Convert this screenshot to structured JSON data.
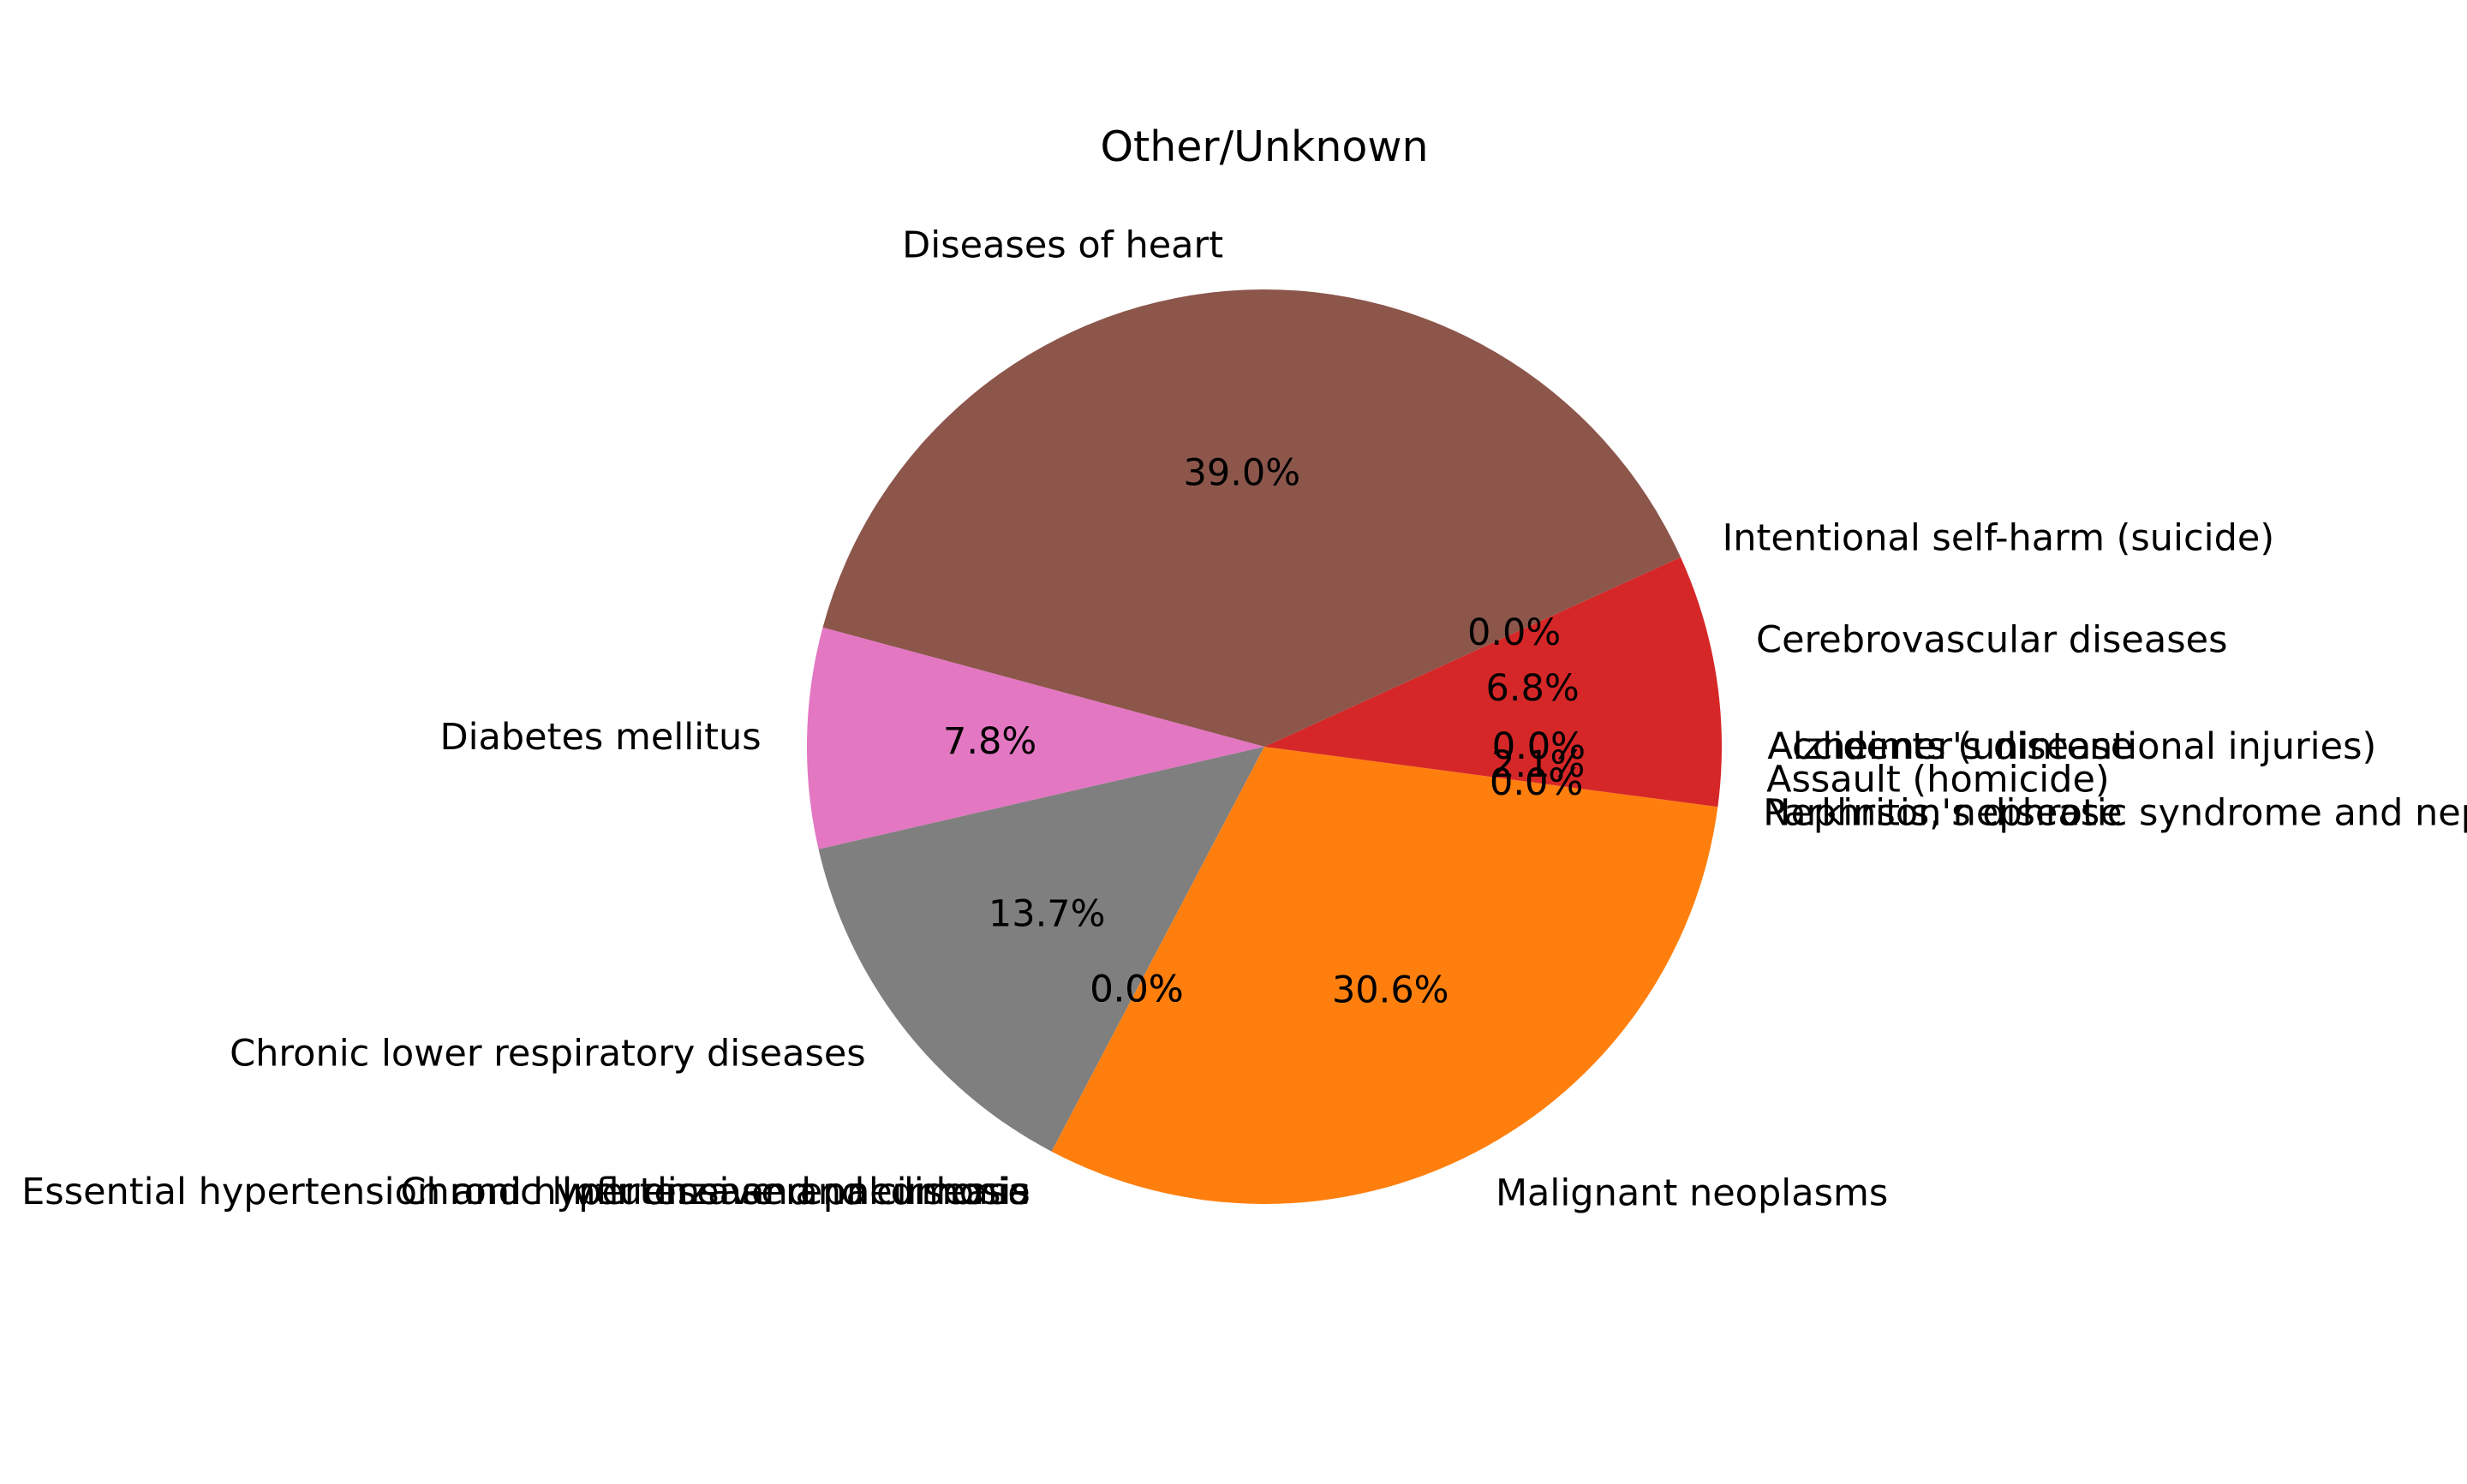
{
  "chart_data": {
    "type": "pie",
    "title": "Other/Unknown",
    "start_angle_deg": 0,
    "direction": "counterclockwise",
    "slices": [
      {
        "label": "Accidents (unintentional injuries)",
        "value": 0.0,
        "pct_label": "0.0%",
        "color": "#ffffff"
      },
      {
        "label": "Alzheimer's disease",
        "value": 0.0,
        "pct_label": "0.0%",
        "color": "#ffffff"
      },
      {
        "label": "Cerebrovascular diseases",
        "value": 6.8,
        "pct_label": "6.8%",
        "color": "#d62728"
      },
      {
        "label": "Intentional self-harm (suicide)",
        "value": 0.0,
        "pct_label": "0.0%",
        "color": "#d62728"
      },
      {
        "label": "Diseases of heart",
        "value": 39.0,
        "pct_label": "39.0%",
        "color": "#8c564b"
      },
      {
        "label": "Diabetes mellitus",
        "value": 7.8,
        "pct_label": "7.8%",
        "color": "#e377c2"
      },
      {
        "label": "Chronic lower respiratory diseases",
        "value": 13.7,
        "pct_label": "13.7%",
        "color": "#7f7f7f"
      },
      {
        "label": "Essential hypertension and hypertensive renal disease",
        "value": 0.0,
        "pct_label": "0.0%",
        "color": "#7f7f7f"
      },
      {
        "label": "Chronic liver disease and cirrhosis",
        "value": 0.0,
        "pct_label": "0.0%",
        "color": "#7f7f7f"
      },
      {
        "label": "Influenza and pneumonia",
        "value": 0.0,
        "pct_label": "0.0%",
        "color": "#7f7f7f"
      },
      {
        "label": "Malignant neoplasms",
        "value": 30.6,
        "pct_label": "30.6%",
        "color": "#ff7f0e"
      },
      {
        "label": "Nephritis, nephrotic syndrome and nephrosis",
        "value": 0.0,
        "pct_label": "0.0%",
        "color": "#ff7f0e"
      },
      {
        "label": "Parkinson's disease",
        "value": 0.0,
        "pct_label": "0.0%",
        "color": "#ff7f0e"
      },
      {
        "label": "Assault (homicide)",
        "value": 2.1,
        "pct_label": "2.1%",
        "color": "#d62728"
      }
    ]
  }
}
